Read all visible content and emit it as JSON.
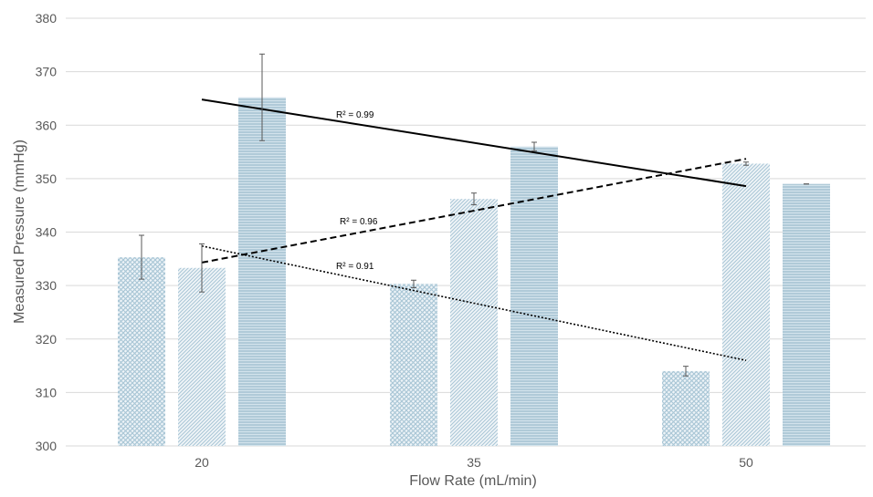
{
  "chart_data": {
    "type": "bar",
    "categories": [
      "20",
      "35",
      "50"
    ],
    "xlabel": "Flow Rate (mL/min)",
    "ylabel": "Measured Pressure (mmHg)",
    "ylim": [
      300,
      380
    ],
    "yticks": [
      300,
      310,
      320,
      330,
      340,
      350,
      360,
      370,
      380
    ],
    "grid": true,
    "legend": "none",
    "bar_color": "#a9c6d6",
    "series": [
      {
        "pattern": "diagonal-cross",
        "values": [
          335.3,
          330.3,
          314.0
        ],
        "errors": [
          4.1,
          0.7,
          0.9
        ]
      },
      {
        "pattern": "diagonal",
        "values": [
          333.3,
          346.2,
          352.8
        ],
        "errors": [
          4.5,
          1.1,
          0.3
        ]
      },
      {
        "pattern": "horizontal",
        "values": [
          365.2,
          356.0,
          349.0
        ],
        "errors": [
          8.1,
          0.8,
          0.0
        ]
      }
    ],
    "trendlines": [
      {
        "style": "solid",
        "x": [
          "20",
          "50"
        ],
        "y": [
          364.8,
          348.6
        ],
        "label": "R² = 0.99"
      },
      {
        "style": "dashed",
        "x": [
          "20",
          "50"
        ],
        "y": [
          334.3,
          353.7
        ],
        "label": "R² = 0.96"
      },
      {
        "style": "dotted",
        "x": [
          "20",
          "50"
        ],
        "y": [
          337.4,
          316.0
        ],
        "label": "R² = 0.91"
      }
    ]
  }
}
